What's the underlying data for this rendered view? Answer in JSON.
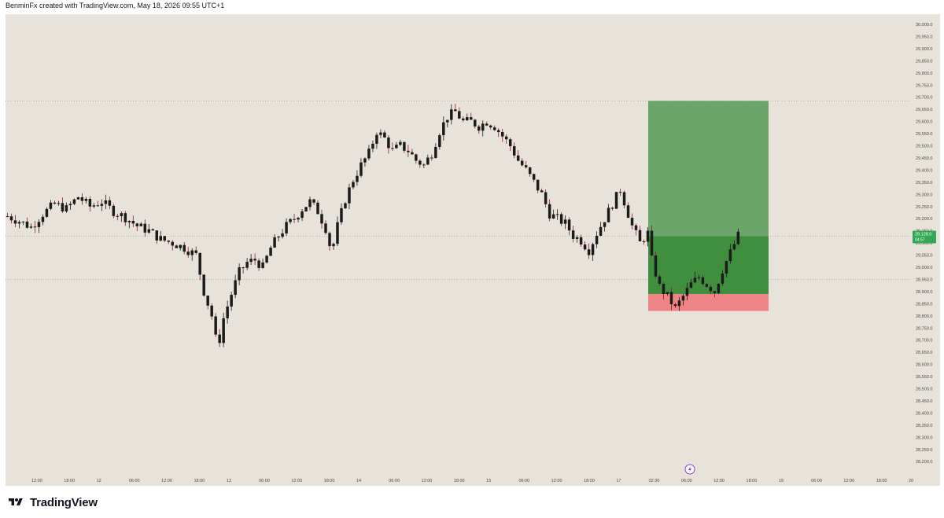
{
  "header": {
    "attribution": "BenminFx created with TradingView.com, May 18, 2026 09:55 UTC+1"
  },
  "brand": {
    "name": "TradingView"
  },
  "colors": {
    "background": "#e8e3da",
    "candle": "#1b1b1b",
    "wick_down": "#8b1a2c",
    "profit_zone": "#6aa56a",
    "profit_active": "#3f8f3f",
    "loss_zone": "#ef8486",
    "price_label": "#33a853"
  },
  "icons": {
    "replay": "lightning-icon",
    "logo": "tradingview-logo-icon"
  },
  "chart_data": {
    "type": "candlestick",
    "ylim": [
      28150,
      30050
    ],
    "y_ticks": [
      "30,000.0",
      "29,950.0",
      "29,900.0",
      "29,850.0",
      "29,800.0",
      "29,750.0",
      "29,700.0",
      "29,650.0",
      "29,600.0",
      "29,550.0",
      "29,500.0",
      "29,450.0",
      "29,400.0",
      "29,350.0",
      "29,300.0",
      "29,250.0",
      "29,200.0",
      "29,150.0",
      "29,100.0",
      "29,050.0",
      "29,000.0",
      "28,950.0",
      "28,900.0",
      "28,850.0",
      "28,800.0",
      "28,750.0",
      "28,700.0",
      "28,650.0",
      "28,600.0",
      "28,550.0",
      "28,500.0",
      "28,450.0",
      "28,400.0",
      "28,350.0",
      "28,300.0",
      "28,250.0",
      "28,200.0"
    ],
    "x_ticks": [
      "12:00",
      "18:00",
      "12",
      "06:00",
      "12:00",
      "18:00",
      "13",
      "06:00",
      "12:00",
      "18:00",
      "14",
      "06:00",
      "12:00",
      "18:00",
      "15",
      "06:00",
      "12:00",
      "18:00",
      "17",
      "02:30",
      "06:00",
      "12:00",
      "18:00",
      "19",
      "06:00",
      "12:00",
      "18:00",
      "20"
    ],
    "price_path": [
      [
        0,
        29210
      ],
      [
        3,
        29190
      ],
      [
        6,
        29165
      ],
      [
        9,
        29220
      ],
      [
        12,
        29260
      ],
      [
        15,
        29240
      ],
      [
        18,
        29290
      ],
      [
        21,
        29250
      ],
      [
        24,
        29270
      ],
      [
        27,
        29230
      ],
      [
        30,
        29205
      ],
      [
        33,
        29170
      ],
      [
        36,
        29150
      ],
      [
        39,
        29115
      ],
      [
        42,
        29100
      ],
      [
        45,
        29080
      ],
      [
        48,
        29050
      ],
      [
        50,
        28900
      ],
      [
        52,
        28800
      ],
      [
        53.5,
        28660
      ],
      [
        55,
        28790
      ],
      [
        57,
        28890
      ],
      [
        59,
        28980
      ],
      [
        61,
        29020
      ],
      [
        63,
        29030
      ],
      [
        65,
        29000
      ],
      [
        67,
        29080
      ],
      [
        69,
        29130
      ],
      [
        71,
        29170
      ],
      [
        73,
        29200
      ],
      [
        75,
        29240
      ],
      [
        77,
        29270
      ],
      [
        79,
        29230
      ],
      [
        81,
        29160
      ],
      [
        82.5,
        29060
      ],
      [
        84,
        29170
      ],
      [
        86,
        29280
      ],
      [
        88,
        29360
      ],
      [
        90,
        29420
      ],
      [
        92,
        29470
      ],
      [
        94,
        29560
      ],
      [
        96,
        29530
      ],
      [
        98,
        29480
      ],
      [
        100,
        29500
      ],
      [
        102,
        29480
      ],
      [
        104,
        29440
      ],
      [
        106,
        29420
      ],
      [
        108,
        29470
      ],
      [
        110,
        29560
      ],
      [
        112,
        29620
      ],
      [
        114,
        29640
      ],
      [
        116,
        29600
      ],
      [
        118,
        29600
      ],
      [
        120,
        29580
      ],
      [
        122,
        29600
      ],
      [
        124,
        29580
      ],
      [
        126,
        29540
      ],
      [
        128,
        29500
      ],
      [
        130,
        29440
      ],
      [
        132,
        29400
      ],
      [
        134,
        29350
      ],
      [
        136,
        29300
      ],
      [
        138,
        29220
      ],
      [
        140,
        29200
      ],
      [
        142,
        29180
      ],
      [
        144,
        29130
      ],
      [
        146,
        29110
      ],
      [
        148,
        29070
      ],
      [
        150,
        29140
      ],
      [
        152,
        29200
      ],
      [
        154,
        29260
      ],
      [
        156,
        29320
      ],
      [
        157,
        29270
      ],
      [
        159,
        29170
      ],
      [
        161,
        29100
      ],
      [
        163,
        29140
      ],
      [
        164,
        29030
      ],
      [
        166,
        28920
      ],
      [
        168,
        28880
      ],
      [
        170,
        28830
      ],
      [
        172,
        28880
      ],
      [
        174,
        28930
      ],
      [
        176,
        28960
      ],
      [
        178,
        28930
      ],
      [
        180,
        28900
      ],
      [
        182,
        28990
      ],
      [
        184,
        29060
      ],
      [
        186,
        29130
      ]
    ],
    "position": {
      "type": "long",
      "entry": 29128,
      "target": 29685,
      "stop": 28820,
      "stop_band_top": 28890,
      "current_price": "29,128.0",
      "countdown": "04:57"
    }
  }
}
